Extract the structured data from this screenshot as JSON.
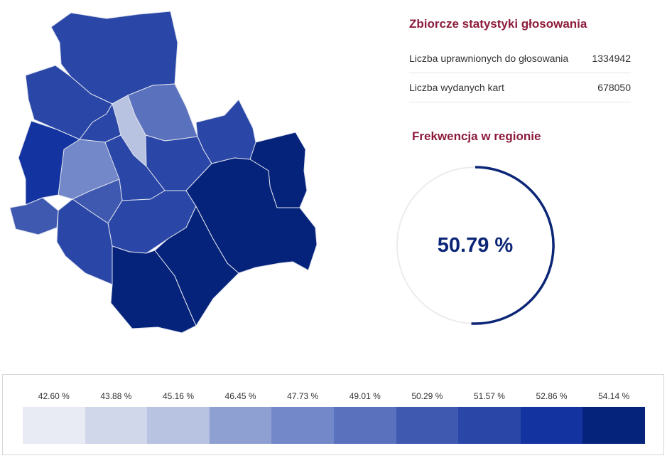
{
  "stats": {
    "title": "Zbiorcze statystyki głosowania",
    "rows": [
      {
        "label": "Liczba uprawnionych do głosowania",
        "value": "1334942"
      },
      {
        "label": "Liczba wydanych kart",
        "value": "678050"
      }
    ]
  },
  "turnout": {
    "title": "Frekwencja w regionie",
    "value_text": "50.79 %",
    "fraction": 0.5079,
    "arc_color": "#0c2677",
    "track_color": "#ececec"
  },
  "legend": {
    "items": [
      {
        "label": "42.60 %",
        "color": "#e8ebf4"
      },
      {
        "label": "43.88 %",
        "color": "#d1d7ea"
      },
      {
        "label": "45.16 %",
        "color": "#b8c2e1"
      },
      {
        "label": "46.45 %",
        "color": "#8e9fd2"
      },
      {
        "label": "47.73 %",
        "color": "#7388c8"
      },
      {
        "label": "49.01 %",
        "color": "#5a72bd"
      },
      {
        "label": "50.29 %",
        "color": "#4059b0"
      },
      {
        "label": "51.57 %",
        "color": "#2a47a8"
      },
      {
        "label": "52.86 %",
        "color": "#1333a0"
      },
      {
        "label": "54.14 %",
        "color": "#06237b"
      }
    ]
  },
  "map": {
    "districts": [
      {
        "level": 7
      },
      {
        "level": 7
      },
      {
        "level": 5
      },
      {
        "level": 2
      },
      {
        "level": 7
      },
      {
        "level": 4
      },
      {
        "level": 8
      },
      {
        "level": 9
      },
      {
        "level": 7
      },
      {
        "level": 7
      },
      {
        "level": 7
      },
      {
        "level": 6
      },
      {
        "level": 7
      },
      {
        "level": 7
      },
      {
        "level": 6
      },
      {
        "level": 9
      },
      {
        "level": 9
      },
      {
        "level": 9
      }
    ]
  }
}
